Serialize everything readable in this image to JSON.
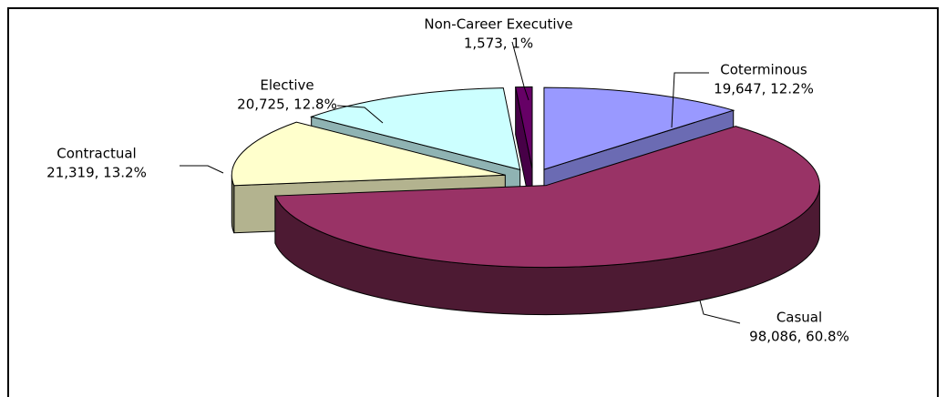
{
  "chart_data": {
    "type": "pie",
    "categories": [
      "Coterminous",
      "Casual",
      "Contractual",
      "Elective",
      "Non-Career Executive"
    ],
    "values": [
      19647,
      98086,
      21319,
      20725,
      1573
    ],
    "value_labels": [
      "19,647, 12.2%",
      "98,086, 60.8%",
      "21,319, 13.2%",
      "20,725, 12.8%",
      "1,573, 1%"
    ],
    "colors": [
      "#9999ff",
      "#993366",
      "#ffffcc",
      "#ccffff",
      "#660066"
    ]
  }
}
